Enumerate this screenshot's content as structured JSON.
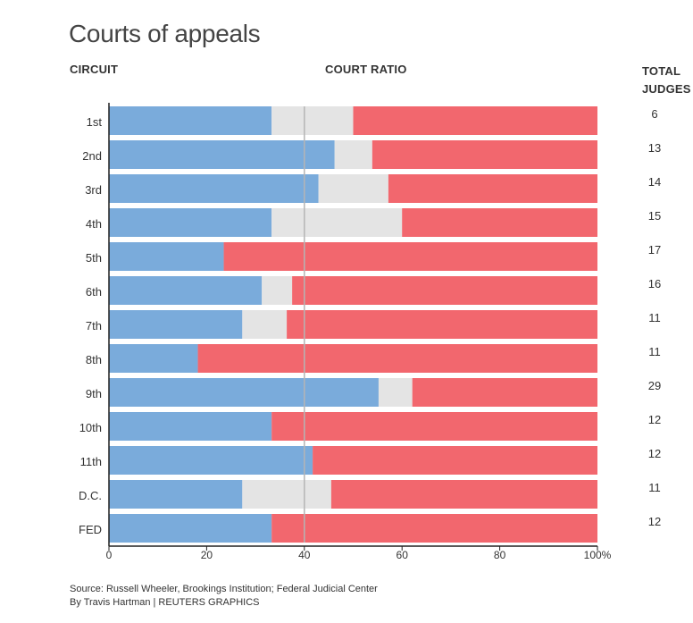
{
  "header": {
    "title": "Courts of appeals",
    "col_circuit": "CIRCUIT",
    "col_ratio": "COURT RATIO",
    "col_total": "TOTAL JUDGES"
  },
  "footer": {
    "source": "Source: Russell Wheeler, Brookings Institution; Federal Judicial Center",
    "credit": "By Travis Hartman | REUTERS GRAPHICS"
  },
  "colors": {
    "blue": "#7aabdb",
    "gray": "#e4e4e4",
    "red": "#f2676e"
  },
  "chart_data": {
    "type": "bar",
    "orientation": "horizontal",
    "stacked": true,
    "title": "Courts of appeals",
    "xlabel": "",
    "ylabel": "CIRCUIT",
    "xlim": [
      0,
      100
    ],
    "x_ticks": [
      "0",
      "20",
      "40",
      "60",
      "80",
      "100%"
    ],
    "categories": [
      "1st",
      "2nd",
      "3rd",
      "4th",
      "5th",
      "6th",
      "7th",
      "8th",
      "9th",
      "10th",
      "11th",
      "D.C.",
      "FED"
    ],
    "series": [
      {
        "color": "#7aabdb",
        "values": [
          33.3,
          46.2,
          42.9,
          33.3,
          23.5,
          31.3,
          27.3,
          18.2,
          55.2,
          33.3,
          41.7,
          27.3,
          33.3
        ]
      },
      {
        "color": "#e4e4e4",
        "values": [
          16.7,
          7.7,
          14.3,
          26.7,
          0,
          6.2,
          9.1,
          0,
          6.9,
          0,
          0,
          18.2,
          0
        ]
      },
      {
        "color": "#f2676e",
        "values": [
          50.0,
          46.1,
          42.8,
          40.0,
          76.5,
          62.5,
          63.6,
          81.8,
          37.9,
          66.7,
          58.3,
          54.5,
          66.7
        ]
      }
    ],
    "total_judges": [
      "6",
      "13",
      "14",
      "15",
      "17",
      "16",
      "11",
      "11",
      "29",
      "12",
      "12",
      "11",
      "12"
    ],
    "reference_line": 40,
    "grid": false
  }
}
